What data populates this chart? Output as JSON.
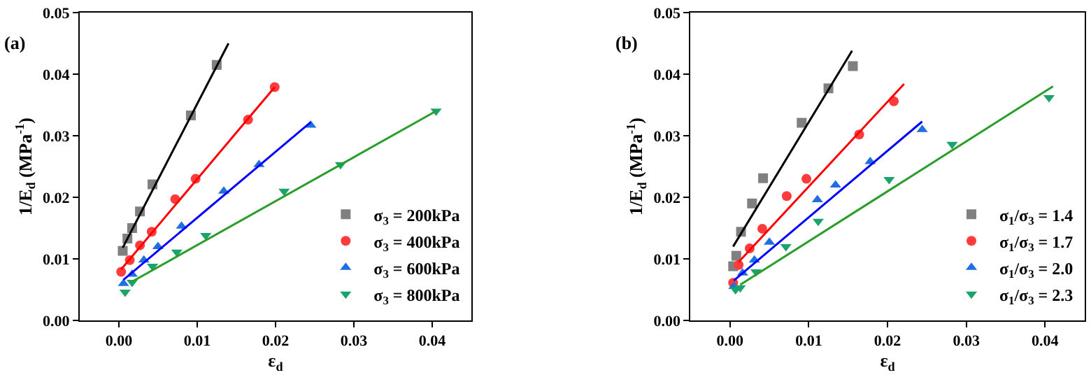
{
  "chart_data": [
    {
      "type": "scatter",
      "title": "(a)",
      "xlabel": "ε$_{d}$",
      "ylabel": "1/E$_{d}$ (MPa$^{-1}$)",
      "xlim": [
        -0.005,
        0.045
      ],
      "ylim": [
        0,
        0.05
      ],
      "xticks": [
        {
          "value": 0,
          "label": "0.00"
        },
        {
          "value": 0.01,
          "label": "0.01"
        },
        {
          "value": 0.02,
          "label": "0.02"
        },
        {
          "value": 0.03,
          "label": "0.03"
        },
        {
          "value": 0.04,
          "label": "0.04"
        }
      ],
      "yticks": [
        {
          "value": 0,
          "label": "0.00"
        },
        {
          "value": 0.01,
          "label": "0.01"
        },
        {
          "value": 0.02,
          "label": "0.02"
        },
        {
          "value": 0.03,
          "label": "0.03"
        },
        {
          "value": 0.04,
          "label": "0.04"
        },
        {
          "value": 0.05,
          "label": "0.05"
        }
      ],
      "legend": "bottom right",
      "series": [
        {
          "name": "σ$_{3}$ = 200kPa",
          "color": "#808080",
          "marker": "square",
          "x": [
            0.0005,
            0.0011,
            0.0017,
            0.0027,
            0.0043,
            0.0092,
            0.0125
          ],
          "values": [
            0.0113,
            0.0133,
            0.015,
            0.0177,
            0.0221,
            0.0333,
            0.0415
          ]
        },
        {
          "name": "σ$_{3}$ = 400kPa",
          "color": "#ff3b3b",
          "marker": "circle",
          "x": [
            0.0003,
            0.0014,
            0.0027,
            0.0042,
            0.0072,
            0.0098,
            0.0165,
            0.0199
          ],
          "values": [
            0.0079,
            0.0098,
            0.0122,
            0.0144,
            0.0197,
            0.023,
            0.0326,
            0.0379
          ]
        },
        {
          "name": "σ$_{3}$ = 600kPa",
          "color": "#1f6fe0",
          "marker": "triangle",
          "x": [
            0.0006,
            0.0017,
            0.0032,
            0.005,
            0.008,
            0.0134,
            0.0179,
            0.0245
          ],
          "values": [
            0.006,
            0.0075,
            0.0098,
            0.012,
            0.0153,
            0.021,
            0.0253,
            0.0317
          ]
        },
        {
          "name": "σ$_{3}$ = 800kPa",
          "color": "#1aa36b",
          "marker": "triangle-down",
          "x": [
            0.0008,
            0.0017,
            0.0043,
            0.0074,
            0.0111,
            0.0211,
            0.0283,
            0.0405
          ],
          "values": [
            0.0046,
            0.0062,
            0.0088,
            0.0111,
            0.0138,
            0.021,
            0.0253,
            0.034
          ]
        },
        {
          "type": "line",
          "color": "#000000",
          "x": [
            0.0005,
            0.014
          ],
          "values": [
            0.0118,
            0.045
          ]
        },
        {
          "type": "line",
          "color": "#ff0000",
          "x": [
            0.0003,
            0.0199
          ],
          "values": [
            0.0083,
            0.0379
          ]
        },
        {
          "type": "line",
          "color": "#0000ff",
          "x": [
            0.0006,
            0.0245
          ],
          "values": [
            0.0066,
            0.0322
          ]
        },
        {
          "type": "line",
          "color": "#2a9d2a",
          "x": [
            0.0017,
            0.0405
          ],
          "values": [
            0.0063,
            0.034
          ]
        }
      ]
    },
    {
      "type": "scatter",
      "title": "(b)",
      "xlabel": "ε$_{d}$",
      "ylabel": "1/E$_{d}$ (MPa$^{-1}$)",
      "xlim": [
        -0.005,
        0.045
      ],
      "ylim": [
        0,
        0.05
      ],
      "xticks": [
        {
          "value": 0,
          "label": "0.00"
        },
        {
          "value": 0.01,
          "label": "0.01"
        },
        {
          "value": 0.02,
          "label": "0.02"
        },
        {
          "value": 0.03,
          "label": "0.03"
        },
        {
          "value": 0.04,
          "label": "0.04"
        }
      ],
      "yticks": [
        {
          "value": 0,
          "label": "0.00"
        },
        {
          "value": 0.01,
          "label": "0.01"
        },
        {
          "value": 0.02,
          "label": "0.02"
        },
        {
          "value": 0.03,
          "label": "0.03"
        },
        {
          "value": 0.04,
          "label": "0.04"
        },
        {
          "value": 0.05,
          "label": "0.05"
        }
      ],
      "legend": "bottom right",
      "series": [
        {
          "name": "σ$_{1}$/σ$_{3}$ = 1.4",
          "color": "#808080",
          "marker": "square",
          "x": [
            0.0004,
            0.0008,
            0.0014,
            0.0028,
            0.0042,
            0.0091,
            0.0125,
            0.0156
          ],
          "values": [
            0.0088,
            0.0105,
            0.0144,
            0.019,
            0.0231,
            0.0321,
            0.0377,
            0.0413
          ]
        },
        {
          "name": "σ$_{1}$/σ$_{3}$ = 1.7",
          "color": "#ff3b3b",
          "marker": "circle",
          "x": [
            0.0004,
            0.0011,
            0.0025,
            0.0041,
            0.0072,
            0.0097,
            0.0164,
            0.0208
          ],
          "values": [
            0.0061,
            0.009,
            0.0117,
            0.0149,
            0.0202,
            0.023,
            0.0302,
            0.0356
          ]
        },
        {
          "name": "σ$_{1}$/σ$_{3}$ = 2.0",
          "color": "#1f6fe0",
          "marker": "triangle",
          "x": [
            0.0005,
            0.0016,
            0.0031,
            0.005,
            0.0111,
            0.0134,
            0.0178,
            0.0244
          ],
          "values": [
            0.0055,
            0.0077,
            0.0098,
            0.0127,
            0.0196,
            0.022,
            0.0258,
            0.031
          ]
        },
        {
          "name": "σ$_{1}$/σ$_{3}$ = 2.3",
          "color": "#1aa36b",
          "marker": "triangle-down",
          "x": [
            0.0007,
            0.0013,
            0.0033,
            0.0071,
            0.0112,
            0.0202,
            0.0282,
            0.0405
          ],
          "values": [
            0.005,
            0.0053,
            0.0079,
            0.012,
            0.0161,
            0.0229,
            0.0286,
            0.0362
          ]
        },
        {
          "type": "line",
          "color": "#000000",
          "x": [
            0.0004,
            0.0155
          ],
          "values": [
            0.012,
            0.0438
          ]
        },
        {
          "type": "line",
          "color": "#ff0000",
          "x": [
            0.0011,
            0.0221
          ],
          "values": [
            0.0095,
            0.0384
          ]
        },
        {
          "type": "line",
          "color": "#0000ff",
          "x": [
            0.0005,
            0.0244
          ],
          "values": [
            0.0065,
            0.0323
          ]
        },
        {
          "type": "line",
          "color": "#2a9d2a",
          "x": [
            0.0013,
            0.041
          ],
          "values": [
            0.0058,
            0.038
          ]
        }
      ]
    }
  ]
}
